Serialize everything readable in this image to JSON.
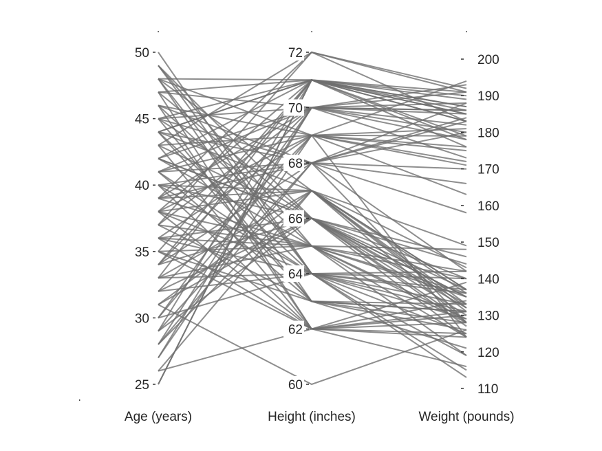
{
  "chart_data": {
    "type": "parallel-coordinates",
    "title": "",
    "axes": [
      {
        "name": "age",
        "label": "Age (years)",
        "range": [
          25,
          50
        ],
        "ticks": [
          25,
          30,
          35,
          40,
          45,
          50
        ]
      },
      {
        "name": "height",
        "label": "Height (inches)",
        "range": [
          60,
          72
        ],
        "ticks": [
          60,
          62,
          64,
          66,
          68,
          70,
          72
        ]
      },
      {
        "name": "weight",
        "label": "Weight (pounds)",
        "range": [
          110,
          200
        ],
        "ticks": [
          110,
          120,
          130,
          140,
          150,
          160,
          170,
          180,
          190,
          200
        ]
      }
    ],
    "line_color": "#6e6e6e",
    "records": [
      [
        38,
        71,
        176
      ],
      [
        43,
        69,
        163
      ],
      [
        38,
        64,
        131
      ],
      [
        40,
        67,
        133
      ],
      [
        49,
        64,
        119
      ],
      [
        46,
        68,
        142
      ],
      [
        33,
        64,
        142
      ],
      [
        40,
        68,
        180
      ],
      [
        28,
        68,
        183
      ],
      [
        31,
        66,
        132
      ],
      [
        45,
        68,
        128
      ],
      [
        42,
        66,
        137
      ],
      [
        25,
        71,
        183
      ],
      [
        39,
        72,
        191
      ],
      [
        36,
        65,
        135
      ],
      [
        48,
        71,
        187
      ],
      [
        32,
        69,
        124
      ],
      [
        27,
        69,
        179
      ],
      [
        37,
        70,
        182
      ],
      [
        50,
        64,
        137
      ],
      [
        48,
        63,
        126
      ],
      [
        39,
        70,
        186
      ],
      [
        30,
        70,
        173
      ],
      [
        38,
        67,
        143
      ],
      [
        45,
        63,
        133
      ],
      [
        41,
        64,
        125
      ],
      [
        35,
        62,
        139
      ],
      [
        44,
        71,
        190
      ],
      [
        35,
        63,
        131
      ],
      [
        33,
        65,
        119
      ],
      [
        29,
        71,
        185
      ],
      [
        36,
        62,
        128
      ],
      [
        44,
        71,
        185
      ],
      [
        41,
        63,
        121
      ],
      [
        26,
        62,
        124
      ],
      [
        42,
        71,
        191
      ],
      [
        29,
        66,
        135
      ],
      [
        47,
        71,
        186
      ],
      [
        30,
        69,
        172
      ],
      [
        38,
        65,
        128
      ],
      [
        25,
        71,
        178
      ],
      [
        39,
        65,
        142
      ],
      [
        44,
        64,
        129
      ],
      [
        34,
        70,
        186
      ],
      [
        46,
        62,
        130
      ],
      [
        42,
        66,
        146
      ],
      [
        37,
        65,
        140
      ],
      [
        48,
        67,
        136
      ],
      [
        28,
        67,
        128
      ],
      [
        31,
        60,
        126
      ],
      [
        41,
        70,
        188
      ],
      [
        43,
        72,
        183
      ],
      [
        34,
        68,
        166
      ],
      [
        47,
        70,
        193
      ],
      [
        39,
        68,
        188
      ],
      [
        40,
        62,
        134
      ],
      [
        32,
        66,
        144
      ],
      [
        44,
        67,
        132
      ],
      [
        36,
        66,
        128
      ],
      [
        45,
        71,
        183
      ],
      [
        33,
        67,
        137
      ],
      [
        42,
        65,
        148
      ],
      [
        48,
        69,
        194
      ],
      [
        37,
        72,
        192
      ],
      [
        29,
        68,
        158
      ],
      [
        40,
        64,
        115
      ],
      [
        47,
        62,
        125
      ],
      [
        36,
        69,
        181
      ],
      [
        45,
        66,
        135
      ],
      [
        38,
        62,
        116
      ],
      [
        43,
        66,
        133
      ],
      [
        34,
        71,
        187
      ],
      [
        49,
        65,
        129
      ],
      [
        32,
        64,
        136
      ],
      [
        26,
        67,
        149
      ],
      [
        41,
        68,
        170
      ],
      [
        35,
        65,
        124
      ],
      [
        46,
        69,
        176
      ],
      [
        28,
        70,
        178
      ],
      [
        44,
        63,
        128
      ],
      [
        39,
        67,
        137
      ],
      [
        30,
        64,
        140
      ],
      [
        47,
        66,
        124
      ],
      [
        37,
        63,
        131
      ],
      [
        42,
        70,
        180
      ],
      [
        33,
        71,
        189
      ],
      [
        49,
        66,
        140
      ],
      [
        38,
        69,
        175
      ],
      [
        31,
        67,
        131
      ],
      [
        45,
        70,
        191
      ],
      [
        35,
        71,
        179
      ],
      [
        43,
        62,
        131
      ],
      [
        40,
        66,
        127
      ],
      [
        27,
        70,
        185
      ],
      [
        46,
        65,
        136
      ],
      [
        36,
        64,
        133
      ],
      [
        44,
        68,
        184
      ],
      [
        34,
        66,
        130
      ],
      [
        41,
        69,
        171
      ],
      [
        48,
        64,
        113
      ]
    ]
  }
}
